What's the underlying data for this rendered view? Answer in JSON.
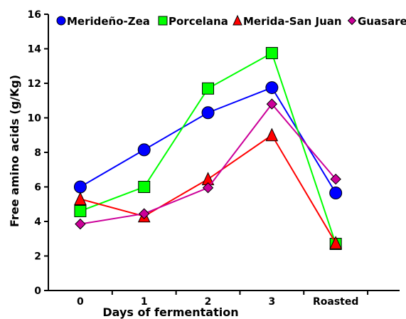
{
  "chart_data": {
    "type": "line",
    "title": "",
    "xlabel": "Days of fermentation",
    "ylabel": "Free amino acids (g/Kg)",
    "categories": [
      "0",
      "1",
      "2",
      "3",
      "Roasted"
    ],
    "ylim": [
      0,
      16
    ],
    "yticks": [
      0,
      2,
      4,
      6,
      8,
      10,
      12,
      14,
      16
    ],
    "grid": false,
    "legend_position": "top",
    "series": [
      {
        "name": "Merideño-Zea",
        "values": [
          6.0,
          8.15,
          10.3,
          11.75,
          5.65
        ],
        "color": "#0000FF",
        "marker": "circle"
      },
      {
        "name": "Porcelana",
        "values": [
          4.6,
          6.0,
          11.7,
          13.75,
          2.7
        ],
        "color": "#00FF00",
        "marker": "square"
      },
      {
        "name": "Merida-San Juan",
        "values": [
          5.3,
          4.3,
          6.45,
          9.0,
          2.75
        ],
        "color": "#FF0000",
        "marker": "triangle"
      },
      {
        "name": "Guasare",
        "values": [
          3.85,
          4.45,
          5.95,
          10.8,
          6.45
        ],
        "color": "#CC0099",
        "marker": "diamond"
      }
    ]
  }
}
